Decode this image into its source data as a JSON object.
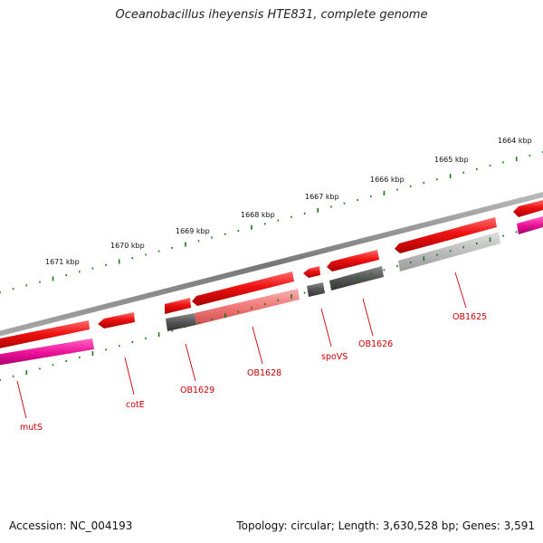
{
  "title": "Oceanobacillus iheyensis HTE831, complete genome",
  "footer": {
    "accession": "Accession: NC_004193",
    "summary": "Topology: circular; Length: 3,630,528 bp; Genes: 3,591"
  },
  "scale": {
    "unit": "kbp",
    "labels": [
      "1671 kbp",
      "1670 kbp",
      "1669 kbp",
      "1668 kbp",
      "1667 kbp",
      "1666 kbp",
      "1665 kbp",
      "1664 kbp"
    ]
  },
  "genes": [
    {
      "name": "mutS",
      "color": "#e00000"
    },
    {
      "name": "cotE",
      "color": "#e00000"
    },
    {
      "name": "OB1629",
      "color": "#e00000"
    },
    {
      "name": "OB1628",
      "color": "#e00000"
    },
    {
      "name": "spoVS",
      "color": "#e00000"
    },
    {
      "name": "OB1626",
      "color": "#e00000"
    },
    {
      "name": "OB1625",
      "color": "#e00000"
    }
  ],
  "colors": {
    "forward_cds": "#ee1111",
    "forward_cds_light": "#f08080",
    "cog_dark": "#555555",
    "cog_light": "#bbbbbb",
    "cog_magenta": "#ee1199",
    "backbone": "#888888",
    "ticks": "#1a7a1a",
    "gene_label": "#cc0000"
  }
}
